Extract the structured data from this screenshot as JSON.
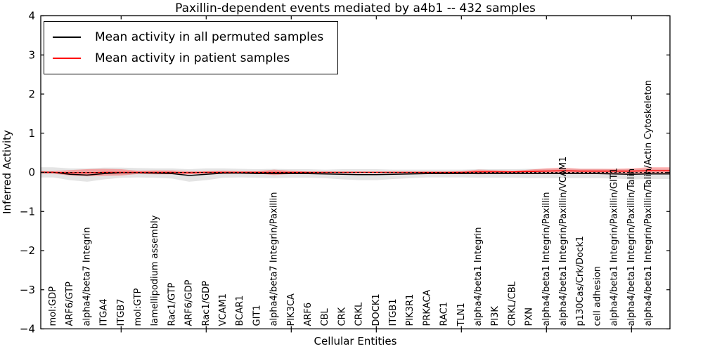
{
  "chart_data": {
    "type": "line",
    "title": "Paxillin-dependent events mediated by a4b1 -- 432 samples",
    "xlabel": "Cellular Entities",
    "ylabel": "Inferred Activity",
    "ylim": [
      -4,
      4
    ],
    "yticks": [
      -4,
      -3,
      -2,
      -1,
      0,
      1,
      2,
      3,
      4
    ],
    "xtick_positions": [
      5,
      10,
      15,
      20,
      25,
      30,
      35
    ],
    "grid": false,
    "legend_position": "upper left",
    "zero_line": "dashed black at y=0",
    "categories": [
      "mol:GDP",
      "ARF6/GTP",
      "alpha4/beta7 Integrin",
      "ITGA4",
      "ITGB7",
      "mol:GTP",
      "lamellipodium assembly",
      "Rac1/GTP",
      "ARF6/GDP",
      "Rac1/GDP",
      "VCAM1",
      "BCAR1",
      "GIT1",
      "alpha4/beta7 Integrin/Paxillin",
      "PIK3CA",
      "ARF6",
      "CBL",
      "CRK",
      "CRKL",
      "DOCK1",
      "ITGB1",
      "PIK3R1",
      "PRKACA",
      "RAC1",
      "TLN1",
      "alpha4/beta1 Integrin",
      "PI3K",
      "CRKL/CBL",
      "PXN",
      "alpha4/beta1 Integrin/Paxillin",
      "alpha4/beta1 Integrin/Paxillin/VCAM1",
      "p130Cas/Crk/Dock1",
      "cell adhesion",
      "alpha4/beta1 Integrin/Paxillin/GIT1",
      "alpha4/beta1 Integrin/Paxillin/Talin",
      "alpha4/beta1 Integrin/Paxillin/Talin/Actin Cytoskeleton"
    ],
    "series": [
      {
        "name": "Mean activity in all permuted samples",
        "color": "#000000",
        "band_color": "#e4e4e4",
        "values": [
          0.0,
          -0.05,
          -0.07,
          -0.03,
          -0.01,
          -0.01,
          -0.02,
          -0.03,
          -0.08,
          -0.05,
          -0.02,
          -0.02,
          -0.03,
          -0.03,
          -0.03,
          -0.03,
          -0.04,
          -0.05,
          -0.06,
          -0.06,
          -0.05,
          -0.04,
          -0.03,
          -0.03,
          -0.03,
          -0.03,
          -0.03,
          -0.03,
          -0.03,
          -0.03,
          -0.03,
          -0.03,
          -0.03,
          -0.04,
          -0.05,
          -0.04
        ],
        "band_halfwidth": [
          0.13,
          0.15,
          0.17,
          0.15,
          0.13,
          0.12,
          0.12,
          0.13,
          0.16,
          0.15,
          0.12,
          0.11,
          0.11,
          0.12,
          0.11,
          0.11,
          0.11,
          0.13,
          0.14,
          0.14,
          0.12,
          0.11,
          0.1,
          0.1,
          0.1,
          0.11,
          0.11,
          0.11,
          0.12,
          0.12,
          0.12,
          0.12,
          0.12,
          0.12,
          0.13,
          0.13
        ]
      },
      {
        "name": "Mean activity in patient samples",
        "color": "#ff0000",
        "band_color": "rgba(255,60,60,0.40)",
        "values": [
          0.0,
          -0.01,
          -0.01,
          0.0,
          0.0,
          0.0,
          0.0,
          0.0,
          -0.01,
          0.0,
          0.0,
          0.0,
          0.0,
          0.0,
          0.0,
          0.0,
          0.0,
          0.0,
          0.0,
          0.0,
          0.0,
          0.0,
          0.0,
          0.0,
          0.0,
          0.01,
          0.01,
          0.01,
          0.02,
          0.03,
          0.04,
          0.03,
          0.03,
          0.03,
          0.03,
          0.04
        ],
        "band_halfwidth": [
          0.03,
          0.07,
          0.09,
          0.09,
          0.08,
          0.04,
          0.05,
          0.05,
          0.04,
          0.03,
          0.04,
          0.03,
          0.03,
          0.07,
          0.04,
          0.02,
          0.02,
          0.02,
          0.02,
          0.02,
          0.02,
          0.02,
          0.02,
          0.02,
          0.03,
          0.06,
          0.05,
          0.03,
          0.05,
          0.07,
          0.08,
          0.06,
          0.06,
          0.06,
          0.07,
          0.09
        ]
      }
    ]
  }
}
